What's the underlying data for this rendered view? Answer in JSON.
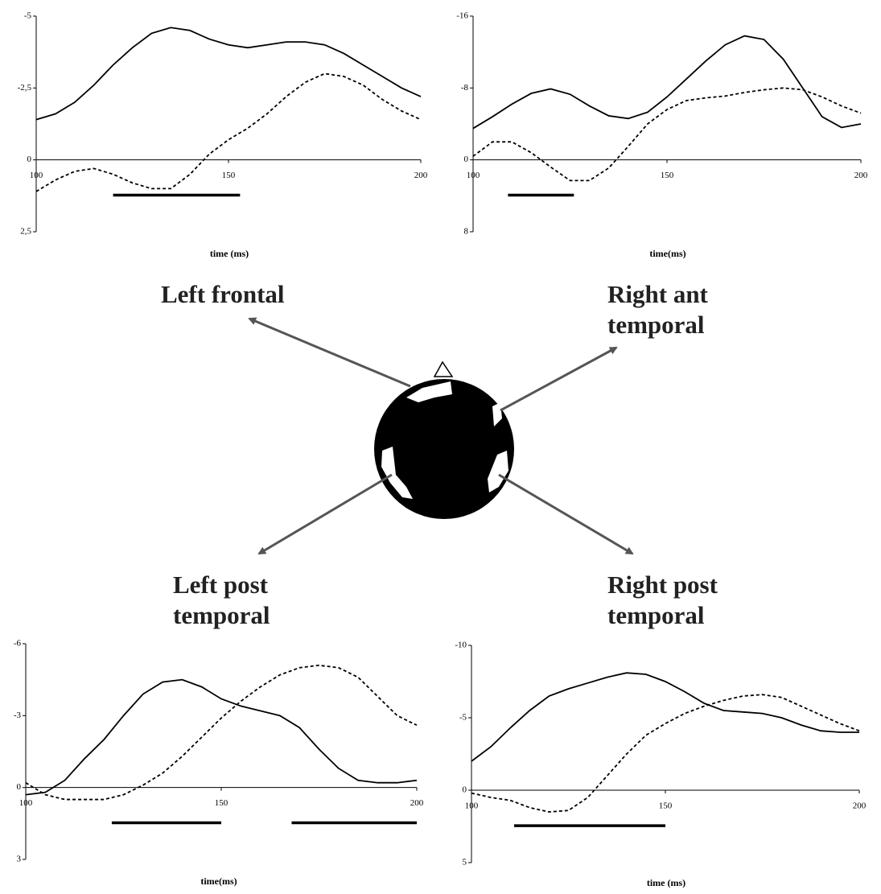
{
  "chart_data": [
    {
      "type": "line",
      "title": "Left frontal",
      "x_label": "time (ms)",
      "x": [
        100,
        105,
        110,
        115,
        120,
        125,
        130,
        135,
        140,
        145,
        150,
        155,
        160,
        165,
        170,
        175,
        180,
        185,
        190,
        195,
        200
      ],
      "series": [
        {
          "color": "#000000",
          "line_style": "solid",
          "values": [
            -1.4,
            -1.6,
            -2.0,
            -2.6,
            -3.3,
            -3.9,
            -4.4,
            -4.6,
            -4.5,
            -4.2,
            -4.0,
            -3.9,
            -4.0,
            -4.1,
            -4.1,
            -4.0,
            -3.7,
            -3.3,
            -2.9,
            -2.5,
            -2.2
          ]
        },
        {
          "color": "#000000",
          "line_style": "dashed",
          "values": [
            1.1,
            0.7,
            0.4,
            0.3,
            0.5,
            0.8,
            1.0,
            1.0,
            0.5,
            -0.2,
            -0.7,
            -1.1,
            -1.6,
            -2.2,
            -2.7,
            -3.0,
            -2.9,
            -2.6,
            -2.1,
            -1.7,
            -1.4
          ]
        }
      ],
      "significant_intervals": [
        [
          120,
          153
        ]
      ],
      "xlim": [
        100,
        200
      ],
      "xticks": [
        100,
        150,
        200
      ],
      "ylim": [
        2.5,
        -5
      ],
      "yticks": [
        -5,
        {
          "value": -2.5,
          "label": "-2,5"
        },
        0,
        {
          "value": 2.5,
          "label": "2,5"
        }
      ]
    },
    {
      "type": "line",
      "title": "Right ant temporal",
      "x_label": "time(ms)",
      "x": [
        100,
        105,
        110,
        115,
        120,
        125,
        130,
        135,
        140,
        145,
        150,
        155,
        160,
        165,
        170,
        175,
        180,
        185,
        190,
        195,
        200
      ],
      "series": [
        {
          "color": "#000000",
          "line_style": "solid",
          "values": [
            -3.5,
            -4.8,
            -6.2,
            -7.4,
            -7.9,
            -7.3,
            -6.0,
            -4.9,
            -4.6,
            -5.3,
            -7.0,
            -9.0,
            -11.0,
            -12.8,
            -13.8,
            -13.4,
            -11.2,
            -8.0,
            -4.8,
            -3.6,
            -4.0
          ]
        },
        {
          "color": "#000000",
          "line_style": "dashed",
          "values": [
            -0.4,
            -2.0,
            -2.0,
            -0.8,
            0.8,
            2.3,
            2.3,
            0.9,
            -1.5,
            -4.0,
            -5.6,
            -6.6,
            -6.9,
            -7.1,
            -7.5,
            -7.8,
            -8.0,
            -7.8,
            -7.0,
            -6.0,
            -5.2
          ]
        }
      ],
      "significant_intervals": [
        [
          109,
          126
        ]
      ],
      "xlim": [
        100,
        200
      ],
      "xticks": [
        100,
        150,
        200
      ],
      "ylim": [
        8,
        -16
      ],
      "yticks": [
        -16,
        -8,
        0,
        8
      ]
    },
    {
      "type": "line",
      "title": "Left post temporal",
      "x_label": "time(ms)",
      "x": [
        100,
        105,
        110,
        115,
        120,
        125,
        130,
        135,
        140,
        145,
        150,
        155,
        160,
        165,
        170,
        175,
        180,
        185,
        190,
        195,
        200
      ],
      "series": [
        {
          "color": "#000000",
          "line_style": "solid",
          "values": [
            0.3,
            0.2,
            -0.3,
            -1.2,
            -2.0,
            -3.0,
            -3.9,
            -4.4,
            -4.5,
            -4.2,
            -3.7,
            -3.4,
            -3.2,
            -3.0,
            -2.5,
            -1.6,
            -0.8,
            -0.3,
            -0.2,
            -0.2,
            -0.3
          ]
        },
        {
          "color": "#000000",
          "line_style": "dashed",
          "values": [
            -0.2,
            0.3,
            0.5,
            0.5,
            0.5,
            0.3,
            -0.1,
            -0.6,
            -1.3,
            -2.1,
            -2.9,
            -3.6,
            -4.2,
            -4.7,
            -5.0,
            -5.1,
            -5.0,
            -4.6,
            -3.8,
            -3.0,
            -2.6
          ]
        }
      ],
      "significant_intervals": [
        [
          122,
          150
        ],
        [
          168,
          200
        ]
      ],
      "xlim": [
        100,
        200
      ],
      "xticks": [
        100,
        150,
        200
      ],
      "ylim": [
        3,
        -6
      ],
      "yticks": [
        -6,
        -3,
        0,
        3
      ]
    },
    {
      "type": "line",
      "title": "Right post temporal",
      "x_label": "time (ms)",
      "x": [
        100,
        105,
        110,
        115,
        120,
        125,
        130,
        135,
        140,
        145,
        150,
        155,
        160,
        165,
        170,
        175,
        180,
        185,
        190,
        195,
        200
      ],
      "series": [
        {
          "color": "#000000",
          "line_style": "solid",
          "values": [
            -2.0,
            -3.0,
            -4.3,
            -5.5,
            -6.5,
            -7.0,
            -7.4,
            -7.8,
            -8.1,
            -8.0,
            -7.5,
            -6.8,
            -6.0,
            -5.5,
            -5.4,
            -5.3,
            -5.0,
            -4.5,
            -4.1,
            -4.0,
            -4.0
          ]
        },
        {
          "color": "#000000",
          "line_style": "dashed",
          "values": [
            0.2,
            0.5,
            0.7,
            1.2,
            1.5,
            1.4,
            0.5,
            -1.0,
            -2.5,
            -3.8,
            -4.6,
            -5.3,
            -5.8,
            -6.2,
            -6.5,
            -6.6,
            -6.4,
            -5.8,
            -5.2,
            -4.6,
            -4.1
          ]
        }
      ],
      "significant_intervals": [
        [
          111,
          150
        ]
      ],
      "xlim": [
        100,
        200
      ],
      "xticks": [
        100,
        150,
        200
      ],
      "ylim": [
        5,
        -10
      ],
      "yticks": [
        -10,
        -5,
        0,
        5
      ]
    }
  ]
}
